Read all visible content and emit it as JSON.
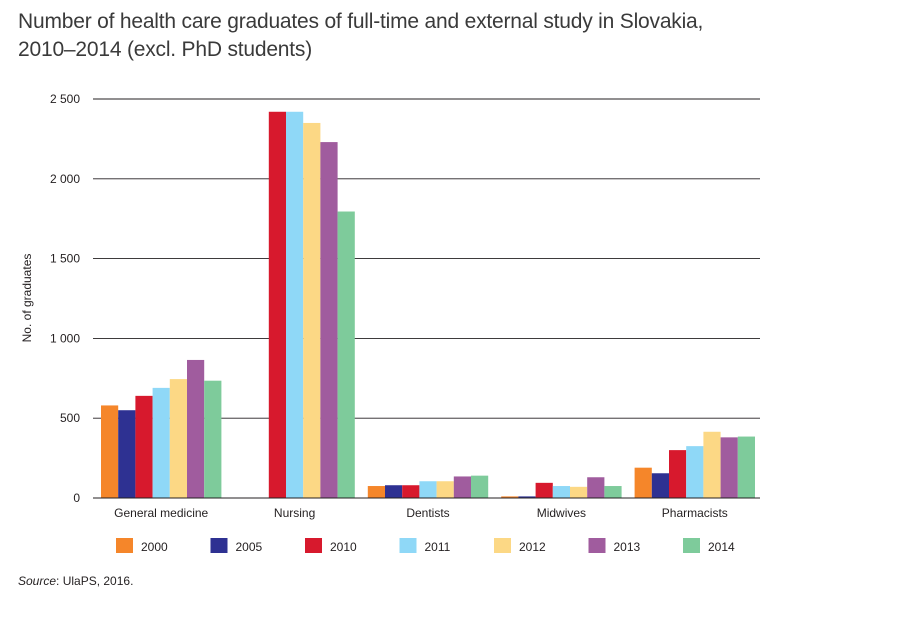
{
  "chart_data": {
    "type": "bar",
    "title_line1": "Number of health care graduates of full-time and external study in Slovakia,",
    "title_line2": "2010–2014 (excl. PhD students)",
    "ylabel": "No. of graduates",
    "xlabel": "",
    "ylim": [
      0,
      2500
    ],
    "yticks": [
      0,
      500,
      1000,
      1500,
      2000,
      2500
    ],
    "ytick_labels": [
      "0",
      "500",
      "1 000",
      "1 500",
      "2 000",
      "2 500"
    ],
    "grid": true,
    "legend_position": "bottom",
    "categories": [
      "General medicine",
      "Nursing",
      "Dentists",
      "Midwives",
      "Pharmacists"
    ],
    "series": [
      {
        "name": "2000",
        "color": "#f5862a",
        "values": [
          580,
          0,
          75,
          10,
          190
        ]
      },
      {
        "name": "2005",
        "color": "#2e3192",
        "values": [
          550,
          0,
          80,
          10,
          155
        ]
      },
      {
        "name": "2010",
        "color": "#d7192d",
        "values": [
          640,
          2420,
          80,
          95,
          300
        ]
      },
      {
        "name": "2011",
        "color": "#8fd8f7",
        "values": [
          690,
          2420,
          105,
          75,
          325
        ]
      },
      {
        "name": "2012",
        "color": "#fcd885",
        "values": [
          745,
          2350,
          105,
          70,
          415
        ]
      },
      {
        "name": "2013",
        "color": "#a05c9e",
        "values": [
          865,
          2230,
          135,
          130,
          380
        ]
      },
      {
        "name": "2014",
        "color": "#7ecb9b",
        "values": [
          735,
          1795,
          140,
          75,
          385
        ]
      }
    ]
  },
  "source": {
    "label": "Source",
    "text": ": UlaPS, 2016."
  }
}
